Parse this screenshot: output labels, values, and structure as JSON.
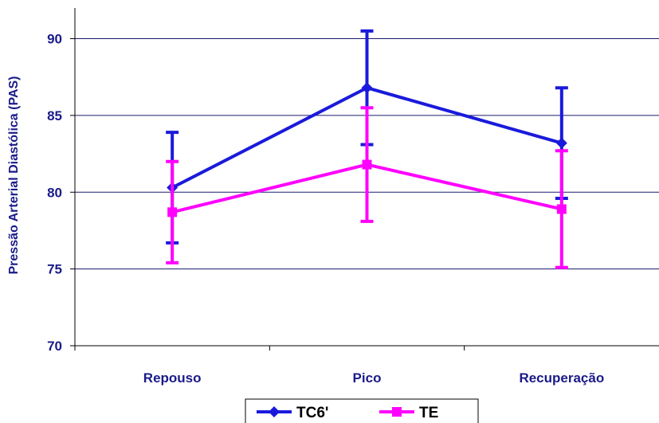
{
  "chart_data": {
    "type": "line",
    "ylabel": "Pressão Arterial Diastólica  (PAS)",
    "xlabel": "",
    "categories": [
      "Repouso",
      "Pico",
      "Recuperação"
    ],
    "ylim": [
      70,
      92
    ],
    "yticks": [
      70,
      75,
      80,
      85,
      90
    ],
    "grid": true,
    "legend_position": "bottom",
    "series": [
      {
        "name": "TC6'",
        "color": "#1a1adc",
        "marker": "diamond",
        "values": [
          80.3,
          86.8,
          83.2
        ],
        "error": [
          3.6,
          3.7,
          3.6
        ]
      },
      {
        "name": "TE",
        "color": "#ff00ff",
        "marker": "square",
        "values": [
          78.7,
          81.8,
          78.9
        ],
        "error": [
          3.3,
          3.7,
          3.8
        ]
      }
    ]
  }
}
